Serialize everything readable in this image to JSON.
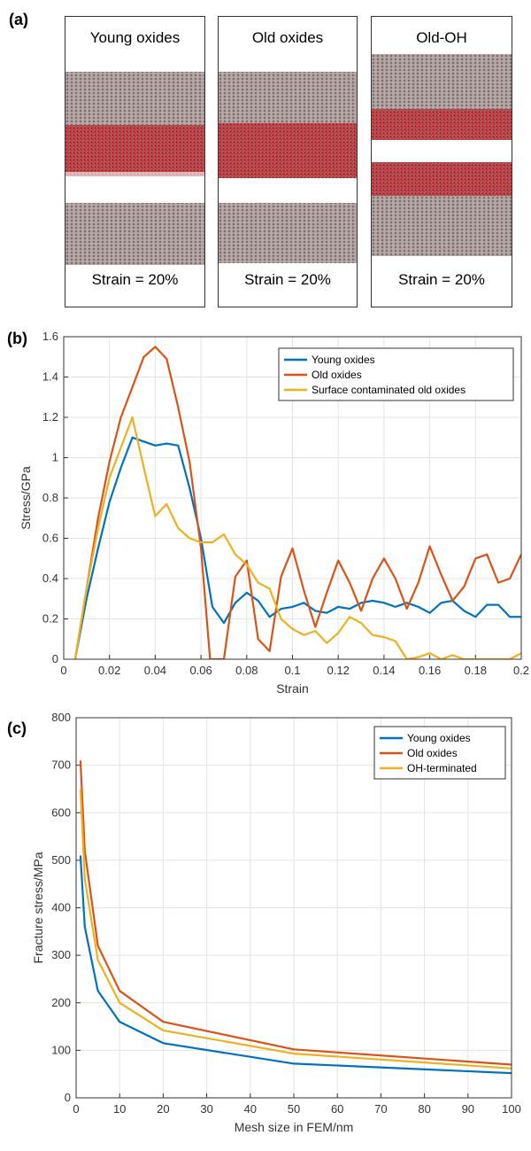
{
  "panel_a": {
    "label": "(a)",
    "panels": [
      {
        "title": "Young oxides",
        "strain": "Strain = 20%"
      },
      {
        "title": "Old oxides",
        "strain": "Strain = 20%"
      },
      {
        "title": "Old-OH",
        "strain": "Strain = 20%"
      }
    ],
    "colors": {
      "metal": "#8e7d7b",
      "oxide": "#c4262e"
    }
  },
  "chart_data": [
    {
      "label": "(b)",
      "type": "line",
      "xlabel": "Strain",
      "ylabel": "Stress/GPa",
      "xlim": [
        0,
        0.2
      ],
      "ylim": [
        0,
        1.6
      ],
      "xticks": [
        "0",
        "0.02",
        "0.04",
        "0.06",
        "0.08",
        "0.1",
        "0.12",
        "0.14",
        "0.16",
        "0.18",
        "0.2"
      ],
      "yticks": [
        "0",
        "0.2",
        "0.4",
        "0.6",
        "0.8",
        "1",
        "1.2",
        "1.4",
        "1.6"
      ],
      "grid": true,
      "legend_position": "top-right",
      "series": [
        {
          "name": "Young oxides",
          "color": "#0072bd",
          "x": [
            0.005,
            0.01,
            0.015,
            0.02,
            0.025,
            0.03,
            0.035,
            0.04,
            0.045,
            0.05,
            0.055,
            0.06,
            0.065,
            0.07,
            0.075,
            0.08,
            0.085,
            0.09,
            0.095,
            0.1,
            0.105,
            0.11,
            0.115,
            0.12,
            0.125,
            0.13,
            0.135,
            0.14,
            0.145,
            0.15,
            0.155,
            0.16,
            0.165,
            0.17,
            0.175,
            0.18,
            0.185,
            0.19,
            0.195,
            0.2
          ],
          "y": [
            0,
            0.3,
            0.55,
            0.78,
            0.95,
            1.1,
            1.08,
            1.06,
            1.07,
            1.06,
            0.85,
            0.6,
            0.26,
            0.18,
            0.28,
            0.33,
            0.29,
            0.21,
            0.25,
            0.26,
            0.28,
            0.24,
            0.23,
            0.26,
            0.25,
            0.28,
            0.29,
            0.28,
            0.26,
            0.28,
            0.26,
            0.23,
            0.28,
            0.29,
            0.24,
            0.21,
            0.27,
            0.27,
            0.21,
            0.21
          ]
        },
        {
          "name": "Old oxides",
          "color": "#d95319",
          "x": [
            0.005,
            0.01,
            0.015,
            0.02,
            0.025,
            0.03,
            0.035,
            0.04,
            0.045,
            0.05,
            0.055,
            0.06,
            0.064,
            0.07,
            0.075,
            0.08,
            0.085,
            0.09,
            0.095,
            0.1,
            0.105,
            0.11,
            0.115,
            0.12,
            0.125,
            0.13,
            0.135,
            0.14,
            0.145,
            0.15,
            0.155,
            0.16,
            0.165,
            0.17,
            0.175,
            0.18,
            0.185,
            0.19,
            0.195,
            0.2
          ],
          "y": [
            0,
            0.35,
            0.7,
            0.98,
            1.2,
            1.35,
            1.5,
            1.55,
            1.49,
            1.25,
            0.98,
            0.55,
            0,
            0,
            0.41,
            0.49,
            0.1,
            0.04,
            0.41,
            0.55,
            0.34,
            0.16,
            0.33,
            0.49,
            0.38,
            0.24,
            0.4,
            0.5,
            0.4,
            0.25,
            0.38,
            0.56,
            0.42,
            0.29,
            0.36,
            0.5,
            0.52,
            0.38,
            0.4,
            0.52
          ]
        },
        {
          "name": "Surface contaminated old oxides",
          "color": "#edb120",
          "x": [
            0.005,
            0.01,
            0.015,
            0.02,
            0.025,
            0.03,
            0.035,
            0.04,
            0.045,
            0.05,
            0.055,
            0.06,
            0.065,
            0.07,
            0.075,
            0.08,
            0.085,
            0.09,
            0.095,
            0.1,
            0.105,
            0.11,
            0.115,
            0.12,
            0.125,
            0.13,
            0.135,
            0.14,
            0.145,
            0.15,
            0.155,
            0.16,
            0.165,
            0.17,
            0.175,
            0.18,
            0.185,
            0.19,
            0.195,
            0.2
          ],
          "y": [
            0,
            0.35,
            0.65,
            0.9,
            1.05,
            1.2,
            0.95,
            0.71,
            0.77,
            0.65,
            0.6,
            0.58,
            0.58,
            0.62,
            0.52,
            0.47,
            0.38,
            0.35,
            0.2,
            0.15,
            0.12,
            0.14,
            0.08,
            0.13,
            0.21,
            0.18,
            0.12,
            0.11,
            0.09,
            0,
            0.01,
            0.03,
            0,
            0.02,
            0,
            0,
            0,
            0,
            0,
            0.03
          ]
        }
      ]
    },
    {
      "label": "(c)",
      "type": "line",
      "xlabel": "Mesh size in FEM/nm",
      "ylabel": "Fracture stress/MPa",
      "xlim": [
        0,
        100
      ],
      "ylim": [
        0,
        800
      ],
      "xticks": [
        "0",
        "10",
        "20",
        "30",
        "40",
        "50",
        "60",
        "70",
        "80",
        "90",
        "100"
      ],
      "yticks": [
        "0",
        "100",
        "200",
        "300",
        "400",
        "500",
        "600",
        "700",
        "800"
      ],
      "grid": true,
      "legend_position": "top-right",
      "series": [
        {
          "name": "Young oxides",
          "color": "#0072bd",
          "x": [
            1,
            2,
            5,
            10,
            20,
            50,
            100
          ],
          "y": [
            510,
            360,
            225,
            160,
            115,
            72,
            52
          ]
        },
        {
          "name": "Old oxides",
          "color": "#d95319",
          "x": [
            1,
            2,
            5,
            10,
            20,
            50,
            100
          ],
          "y": [
            710,
            520,
            320,
            225,
            160,
            102,
            70
          ]
        },
        {
          "name": "OH-terminated",
          "color": "#edb120",
          "x": [
            1,
            2,
            5,
            10,
            20,
            50,
            100
          ],
          "y": [
            650,
            460,
            290,
            200,
            142,
            93,
            62
          ]
        }
      ]
    }
  ]
}
